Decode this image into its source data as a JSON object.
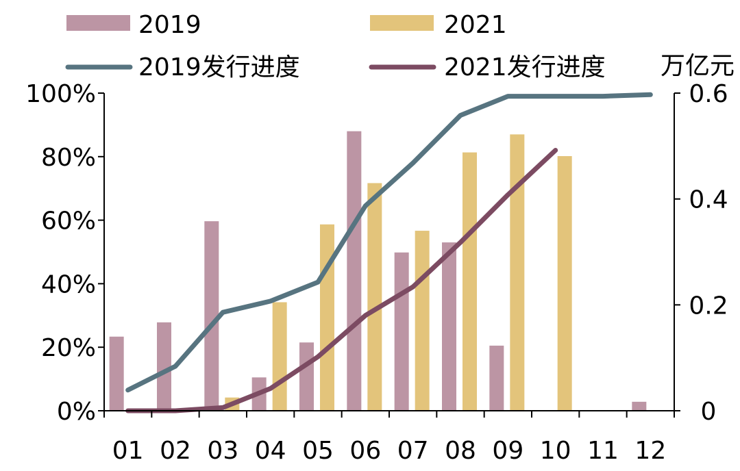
{
  "chart_data": {
    "type": "bar",
    "categories": [
      "01",
      "02",
      "03",
      "04",
      "05",
      "06",
      "07",
      "08",
      "09",
      "10",
      "11",
      "12"
    ],
    "series": [
      {
        "name": "2019",
        "kind": "bar",
        "axis": "right",
        "color": "#BC95A4",
        "values": [
          0.14,
          0.167,
          0.358,
          0.063,
          0.129,
          0.528,
          0.299,
          0.318,
          0.123,
          0,
          0,
          0.017
        ]
      },
      {
        "name": "2021",
        "kind": "bar",
        "axis": "right",
        "color": "#E3C47B",
        "values": [
          0,
          0,
          0.025,
          0.205,
          0.352,
          0.43,
          0.34,
          0.488,
          0.522,
          0.481,
          null,
          null
        ]
      },
      {
        "name": "2019发行进度",
        "kind": "line",
        "axis": "left",
        "color": "#577480",
        "values": [
          6.5,
          14,
          31,
          34.5,
          40.5,
          64.5,
          78,
          93,
          99,
          99,
          99,
          99.5
        ]
      },
      {
        "name": "2021发行进度",
        "kind": "line",
        "axis": "left",
        "color": "#7C4B62",
        "values": [
          0,
          0,
          1,
          7,
          17,
          30,
          39,
          53,
          68,
          82,
          null,
          null
        ]
      }
    ],
    "y_left": {
      "min": 0,
      "max": 100,
      "ticks": [
        "0%",
        "20%",
        "40%",
        "60%",
        "80%",
        "100%"
      ]
    },
    "y_right": {
      "min": 0,
      "max": 0.6,
      "ticks": [
        "0",
        "0.2",
        "0.4",
        "0.6"
      ],
      "unit": "万亿元"
    },
    "legend": {
      "placement": "top",
      "items": [
        {
          "label": "2019",
          "type": "bar",
          "color": "#BC95A4"
        },
        {
          "label": "2021",
          "type": "bar",
          "color": "#E3C47B"
        },
        {
          "label": "2019发行进度",
          "type": "line",
          "color": "#577480"
        },
        {
          "label": "2021发行进度",
          "type": "line",
          "color": "#7C4B62"
        }
      ]
    },
    "grid": false
  }
}
